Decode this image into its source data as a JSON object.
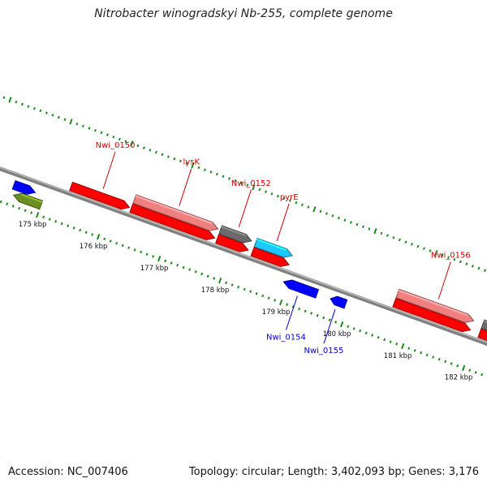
{
  "title": "Nitrobacter winogradskyi Nb-255, complete genome",
  "footer": {
    "accession": "Accession: NC_007406",
    "topology": "Topology: circular; Length: 3,402,093 bp; Genes: 3,176"
  },
  "colors": {
    "backbone": "#808080",
    "ruler_tick": "#1a8a1a",
    "gene_red": "#ff0000",
    "gene_pink": "#f08080",
    "gene_gray": "#6a6a6a",
    "gene_cyan": "#1ec8ff",
    "gene_blue": "#0000ff",
    "gene_olive": "#6b8e23",
    "label_red": "#cc0000",
    "label_blue": "#0000cc"
  },
  "scale": {
    "unit": "kbp",
    "labels": [
      "175 kbp",
      "176 kbp",
      "177 kbp",
      "178 kbp",
      "179 kbp",
      "180 kbp",
      "181 kbp",
      "182 kbp"
    ]
  },
  "genes": [
    {
      "track": -1,
      "start": 174.5,
      "end": 174.85,
      "strand": "+",
      "color": "gene_blue",
      "label": ""
    },
    {
      "track": -2,
      "start": 174.55,
      "end": 175.0,
      "strand": "-",
      "color": "gene_olive",
      "label": ""
    },
    {
      "track": 1,
      "start": 175.34,
      "end": 176.3,
      "strand": "+",
      "color": "gene_red",
      "label": "Nwi_0150",
      "label_color": "label_red"
    },
    {
      "track": 2,
      "start": 176.33,
      "end": 177.7,
      "strand": "+",
      "color": "gene_pink",
      "label": "lysK",
      "label_color": "label_red"
    },
    {
      "track": 1,
      "start": 176.33,
      "end": 177.7,
      "strand": "+",
      "color": "gene_red",
      "label": ""
    },
    {
      "track": 2,
      "start": 177.74,
      "end": 178.25,
      "strand": "+",
      "color": "gene_gray",
      "label": "Nwi_0152",
      "label_color": "label_red"
    },
    {
      "track": 1,
      "start": 177.74,
      "end": 178.25,
      "strand": "+",
      "color": "gene_red",
      "label": ""
    },
    {
      "track": 2,
      "start": 178.32,
      "end": 178.92,
      "strand": "+",
      "color": "gene_cyan",
      "label": "pyrE",
      "label_color": "label_red"
    },
    {
      "track": 1,
      "start": 178.32,
      "end": 178.92,
      "strand": "+",
      "color": "gene_red",
      "label": ""
    },
    {
      "track": -1,
      "start": 178.93,
      "end": 179.48,
      "strand": "-",
      "color": "gene_blue",
      "label": "Nwi_0154",
      "label_color": "label_blue"
    },
    {
      "track": -1,
      "start": 179.7,
      "end": 179.95,
      "strand": "-",
      "color": "gene_blue",
      "label": "Nwi_0155",
      "label_color": "label_blue"
    },
    {
      "track": 2,
      "start": 180.65,
      "end": 181.9,
      "strand": "+",
      "color": "gene_pink",
      "label": "Nwi_0156",
      "label_color": "label_red"
    },
    {
      "track": 1,
      "start": 180.65,
      "end": 181.9,
      "strand": "+",
      "color": "gene_red",
      "label": ""
    },
    {
      "track": 2,
      "start": 182.05,
      "end": 182.3,
      "strand": "+",
      "color": "gene_gray",
      "label": ""
    },
    {
      "track": 1,
      "start": 182.05,
      "end": 182.3,
      "strand": "+",
      "color": "gene_red",
      "label": ""
    }
  ]
}
